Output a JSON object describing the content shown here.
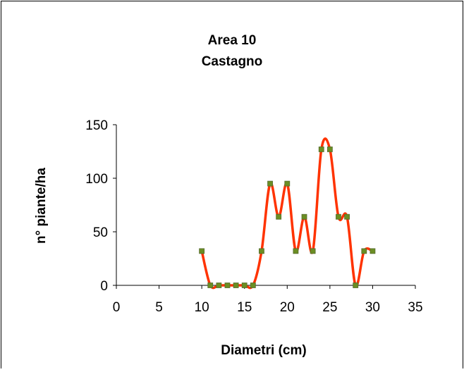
{
  "chart_data": {
    "type": "line",
    "title": [
      "Area 10",
      "Castagno"
    ],
    "xlabel": "Diametri (cm)",
    "ylabel": "n° piante/ha",
    "xlim": [
      0,
      35
    ],
    "ylim": [
      0,
      150
    ],
    "x_ticks": [
      0,
      5,
      10,
      15,
      20,
      25,
      30,
      35
    ],
    "y_ticks": [
      0,
      50,
      100,
      150
    ],
    "grid": false,
    "legend": "none",
    "series": [
      {
        "line_color": "#ff3300",
        "marker_color": "#6b8e23",
        "marker": "square",
        "smooth": true,
        "x": [
          10,
          11,
          12,
          13,
          14,
          15,
          16,
          17,
          18,
          19,
          20,
          21,
          22,
          23,
          24,
          25,
          26,
          27,
          28,
          29,
          30
        ],
        "y": [
          32,
          0,
          0,
          0,
          0,
          0,
          0,
          32,
          95,
          64,
          95,
          32,
          64,
          32,
          127,
          127,
          64,
          64,
          0,
          32,
          32
        ]
      }
    ]
  }
}
